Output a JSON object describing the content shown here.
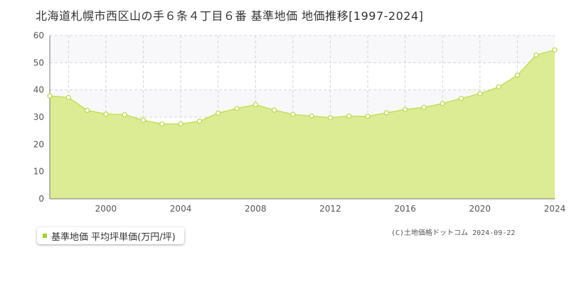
{
  "title": "北海道札幌市西区山の手６条４丁目６番 基準地価 地価推移[1997-2024]",
  "legend_label": "基準地価 平均坪単価(万円/坪)",
  "copyright": "(C)土地価格ドットコム 2024-09-22",
  "colors": {
    "area_fill": "#dcec94",
    "line": "#c4de5c",
    "marker_fill": "#ffffff",
    "marker_stroke": "#b8d84a",
    "legend_swatch": "#a6cc30",
    "band_fill": "#f8f8fb",
    "grid": "#d4d4d4",
    "axis": "#777777"
  },
  "chart_data": {
    "type": "area",
    "title": "北海道札幌市西区山の手６条４丁目６番 基準地価 地価推移[1997-2024]",
    "xlabel": "",
    "ylabel": "",
    "xlim": [
      1997,
      2024
    ],
    "ylim": [
      0,
      60
    ],
    "yticks": [
      0,
      10,
      20,
      30,
      40,
      50,
      60
    ],
    "xticks": [
      2000,
      2004,
      2008,
      2012,
      2016,
      2020,
      2024
    ],
    "grid": true,
    "legend_position": "bottom-left",
    "series": [
      {
        "name": "基準地価 平均坪単価(万円/坪)",
        "x": [
          1997,
          1998,
          1999,
          2000,
          2001,
          2002,
          2003,
          2004,
          2005,
          2006,
          2007,
          2008,
          2009,
          2010,
          2011,
          2012,
          2013,
          2014,
          2015,
          2016,
          2017,
          2018,
          2019,
          2020,
          2021,
          2022,
          2023,
          2024
        ],
        "values": [
          37.8,
          37.2,
          32.5,
          31.1,
          30.9,
          28.9,
          27.5,
          27.5,
          28.5,
          31.5,
          33.2,
          34.6,
          32.6,
          31.0,
          30.4,
          29.8,
          30.4,
          30.3,
          31.6,
          32.8,
          33.6,
          35.0,
          36.9,
          38.6,
          41.1,
          45.4,
          52.8,
          54.7
        ]
      }
    ]
  }
}
